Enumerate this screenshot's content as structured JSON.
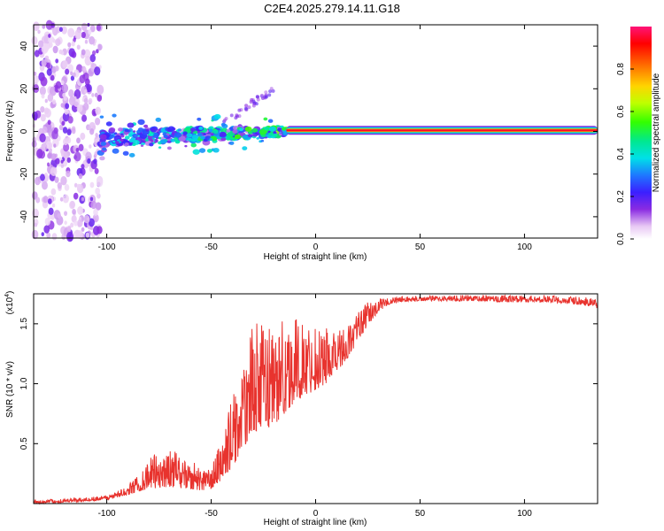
{
  "title": "C2E4.2025.279.14.11.G18",
  "chart_data": [
    {
      "type": "heatmap",
      "title": "C2E4.2025.279.14.11.G18",
      "xlabel": "Height of straight line (km)",
      "ylabel": "Frequency (Hz)",
      "xlim": [
        -135,
        135
      ],
      "ylim": [
        -50,
        50
      ],
      "x_ticks": [
        -100,
        -50,
        0,
        50,
        100
      ],
      "x_tick_labels": [
        "-100",
        "-50",
        "0",
        "50",
        "100"
      ],
      "y_ticks": [
        -40,
        -20,
        0,
        20,
        40
      ],
      "y_tick_labels": [
        "-40",
        "-20",
        "0",
        "20",
        "40"
      ],
      "colorbar": {
        "label": "Normalized spectral amplitude",
        "range": [
          0,
          1
        ],
        "ticks": [
          0.0,
          0.2,
          0.4,
          0.6,
          0.8
        ],
        "tick_labels": [
          "0.0",
          "0.2",
          "0.4",
          "0.6",
          "0.8"
        ]
      },
      "description_series": {
        "noise_region_x": [
          -135,
          -103
        ],
        "dominant_line": {
          "x_start": -14,
          "x_end": 135,
          "frequency_hz": 0.5,
          "amplitude": 0.95
        },
        "scattered_band": {
          "x_start": -103,
          "x_end": -14,
          "frequency_center_start": -3,
          "frequency_center_end": 0
        }
      }
    },
    {
      "type": "line",
      "xlabel": "Height of straight line (km)",
      "ylabel": "SNR (10 * v/v)",
      "ymultiplier": "(x10",
      "ymultiplier_exp": "4",
      "ymultiplier_close": ")",
      "xlim": [
        -135,
        135
      ],
      "ylim": [
        0,
        1.75
      ],
      "x_ticks": [
        -100,
        -50,
        0,
        50,
        100
      ],
      "x_tick_labels": [
        "-100",
        "-50",
        "0",
        "50",
        "100"
      ],
      "y_ticks": [
        0.5,
        1.0,
        1.5
      ],
      "y_tick_labels": [
        "0.5",
        "1.0",
        "1.5"
      ],
      "series": [
        {
          "name": "SNR",
          "color": "#e8332e",
          "envelope_x": [
            -135,
            -120,
            -110,
            -100,
            -95,
            -90,
            -85,
            -80,
            -75,
            -70,
            -65,
            -60,
            -55,
            -50,
            -45,
            -40,
            -35,
            -30,
            -25,
            -20,
            -15,
            -10,
            -5,
            0,
            5,
            10,
            15,
            20,
            25,
            30,
            35,
            40,
            50,
            60,
            70,
            80,
            90,
            100,
            110,
            120,
            130,
            135
          ],
          "envelope_low": [
            0.0,
            0.01,
            0.02,
            0.03,
            0.05,
            0.07,
            0.1,
            0.12,
            0.13,
            0.14,
            0.13,
            0.12,
            0.11,
            0.12,
            0.2,
            0.3,
            0.45,
            0.6,
            0.62,
            0.65,
            0.75,
            0.85,
            0.9,
            0.95,
            1.0,
            1.1,
            1.2,
            1.35,
            1.48,
            1.6,
            1.66,
            1.68,
            1.69,
            1.69,
            1.69,
            1.69,
            1.68,
            1.68,
            1.68,
            1.67,
            1.65,
            1.63
          ],
          "envelope_high": [
            0.03,
            0.04,
            0.05,
            0.07,
            0.1,
            0.15,
            0.25,
            0.38,
            0.45,
            0.45,
            0.42,
            0.38,
            0.3,
            0.3,
            0.55,
            0.9,
            1.1,
            1.52,
            1.5,
            1.55,
            1.55,
            1.55,
            1.5,
            1.5,
            1.5,
            1.45,
            1.5,
            1.6,
            1.68,
            1.71,
            1.72,
            1.73,
            1.73,
            1.74,
            1.74,
            1.74,
            1.74,
            1.74,
            1.74,
            1.73,
            1.72,
            1.7
          ]
        }
      ]
    }
  ]
}
